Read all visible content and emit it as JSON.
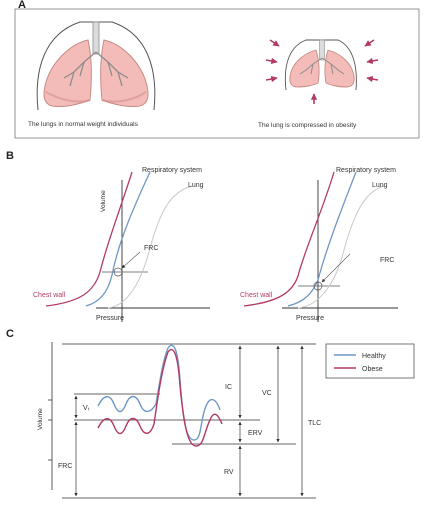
{
  "panel_a": {
    "letter": "A",
    "normal_caption": "The lungs in normal weight individuals",
    "obese_caption": "The lung is compressed in obesity"
  },
  "panel_b": {
    "letter": "B",
    "left": {
      "respiratory_system": "Respiratory system",
      "lung": "Lung",
      "volume": "Volume",
      "frc": "FRC",
      "chest_wall": "Chest wall",
      "pressure": "Pressure"
    },
    "right": {
      "respiratory_system": "Respiratory system",
      "lung": "Lung",
      "frc": "FRC",
      "chest_wall": "Chest wall",
      "pressure": "Pressure"
    }
  },
  "panel_c": {
    "letter": "C",
    "volume": "Volume",
    "vt": "Vₜ",
    "frc": "FRC",
    "ic": "IC",
    "erv": "ERV",
    "rv": "RV",
    "vc": "VC",
    "tlc": "TLC",
    "legend": [
      {
        "label": "Healthy",
        "color": "#6f97c4"
      },
      {
        "label": "Obese",
        "color": "#b23a66"
      }
    ]
  },
  "colors": {
    "lung_fill": "#f3bcb8",
    "lung_stroke": "#c98b86",
    "bronchi": "#8c8c8c",
    "arrow": "#b23a66",
    "healthy": "#6f97c4",
    "obese": "#b23a66",
    "lung_curve": "#c8c8c8"
  }
}
